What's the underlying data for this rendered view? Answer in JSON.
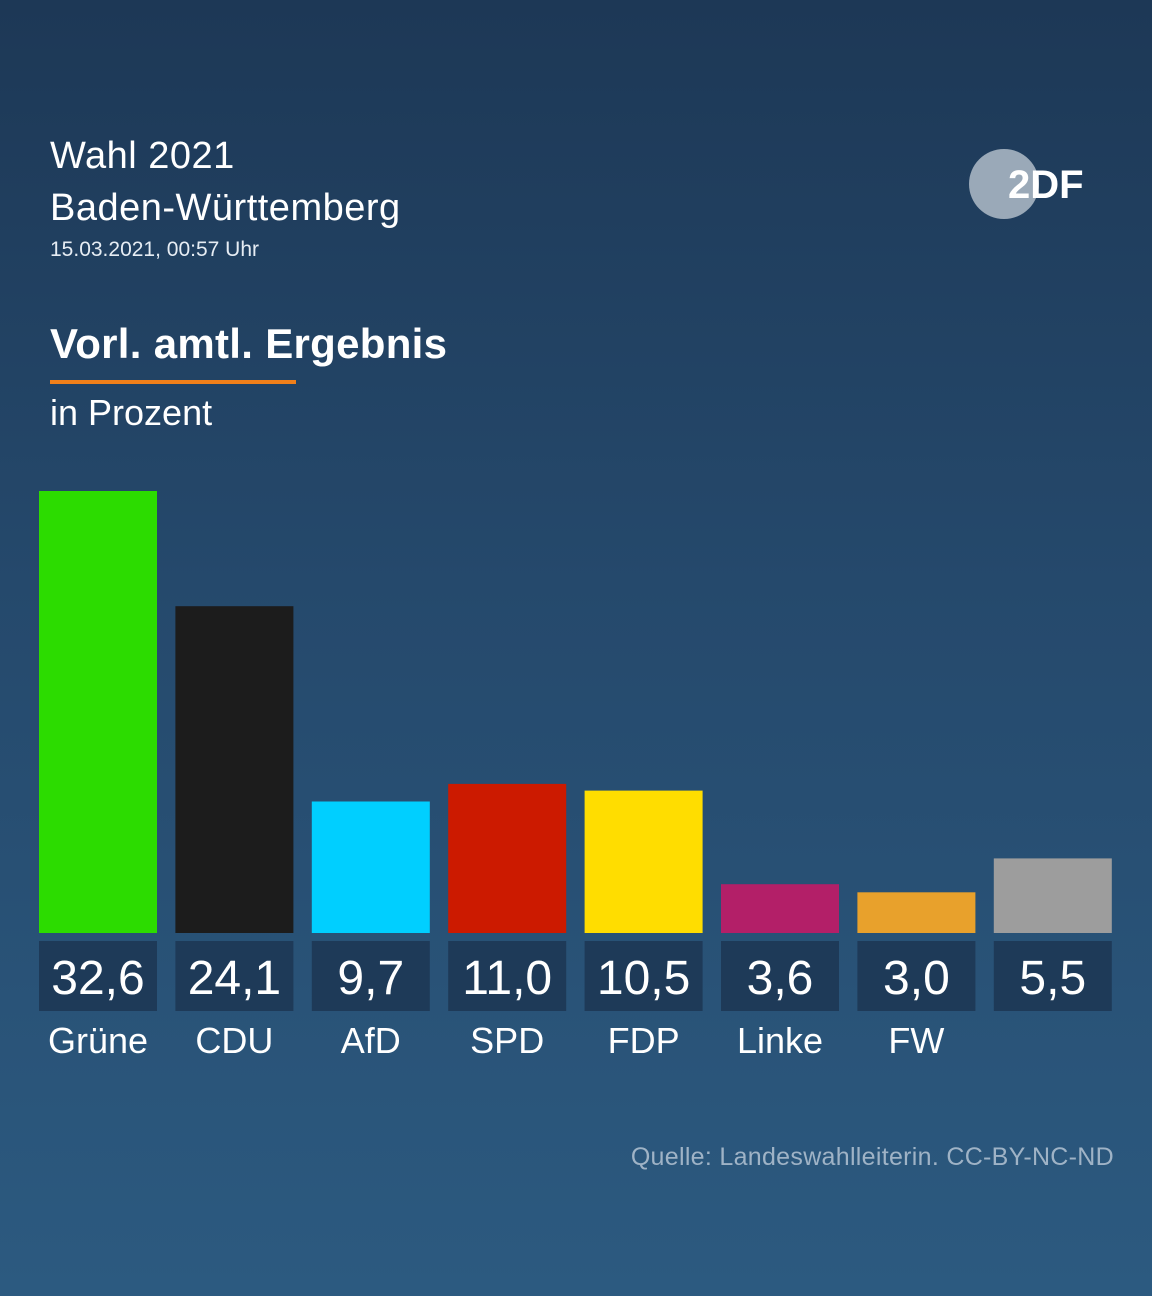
{
  "header": {
    "line1": "Wahl 2021",
    "line2": "Baden-Württemberg",
    "timestamp": "15.03.2021, 00:57 Uhr"
  },
  "logo": {
    "text": "2DF",
    "circle_color": "#9aa9b8"
  },
  "section": {
    "title": "Vorl. amtl. Ergebnis",
    "unit": "in Prozent",
    "accent_color": "#f07f1a"
  },
  "chart_data": {
    "type": "bar",
    "categories": [
      "Grüne",
      "CDU",
      "AfD",
      "SPD",
      "FDP",
      "Linke",
      "FW",
      ""
    ],
    "values": [
      32.6,
      24.1,
      9.7,
      11.0,
      10.5,
      3.6,
      3.0,
      5.5
    ],
    "value_labels": [
      "32,6",
      "24,1",
      "9,7",
      "11,0",
      "10,5",
      "3,6",
      "3,0",
      "5,5"
    ],
    "colors": [
      "#2cdc00",
      "#1c1c1c",
      "#00cfff",
      "#cc1a00",
      "#ffdd00",
      "#b31f68",
      "#e8a12c",
      "#9d9d9d"
    ],
    "label_box_color": "#1e3a58",
    "xlabel": "",
    "ylabel": "",
    "ylim": [
      0,
      32.6
    ]
  },
  "footer": {
    "source": "Quelle: Landeswahlleiterin. CC-BY-NC-ND"
  }
}
